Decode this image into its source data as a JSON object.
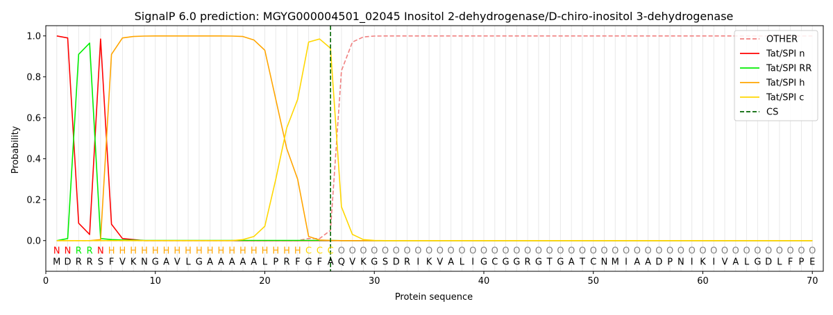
{
  "chart_data": {
    "type": "line",
    "title": "SignalP 6.0 prediction: MGYG000004501_02045 Inositol 2-dehydrogenase/D-chiro-inositol 3-dehydrogenase",
    "xlabel": "Protein sequence",
    "ylabel": "Probability",
    "xlim": [
      0,
      71
    ],
    "ylim": [
      -0.15,
      1.05
    ],
    "x_ticks": [
      0,
      10,
      20,
      30,
      40,
      50,
      60,
      70
    ],
    "y_ticks": [
      0.0,
      0.2,
      0.4,
      0.6,
      0.8,
      1.0
    ],
    "x_tick_labels": [
      "0",
      "10",
      "20",
      "30",
      "40",
      "50",
      "60",
      "70"
    ],
    "y_tick_labels": [
      "0.0",
      "0.2",
      "0.4",
      "0.6",
      "0.8",
      "1.0"
    ],
    "grid": "vertical lines at each sequence position",
    "legend_position": "top-right",
    "sequence": [
      "M",
      "D",
      "R",
      "R",
      "S",
      "F",
      "V",
      "K",
      "N",
      "G",
      "A",
      "V",
      "L",
      "G",
      "A",
      "A",
      "A",
      "A",
      "A",
      "L",
      "P",
      "R",
      "F",
      "G",
      "F",
      "A",
      "Q",
      "V",
      "K",
      "G",
      "S",
      "D",
      "R",
      "I",
      "K",
      "V",
      "A",
      "L",
      "I",
      "G",
      "C",
      "G",
      "G",
      "R",
      "G",
      "T",
      "G",
      "A",
      "T",
      "C",
      "N",
      "M",
      "I",
      "A",
      "A",
      "D",
      "P",
      "N",
      "I",
      "K",
      "I",
      "V",
      "A",
      "L",
      "G",
      "D",
      "L",
      "F",
      "P",
      "E"
    ],
    "region_labels": [
      "N",
      "N",
      "R",
      "R",
      "N",
      "H",
      "H",
      "H",
      "H",
      "H",
      "H",
      "H",
      "H",
      "H",
      "H",
      "H",
      "H",
      "H",
      "H",
      "H",
      "H",
      "H",
      "H",
      "C",
      "C",
      "C",
      "O",
      "O",
      "O",
      "O",
      "O",
      "O",
      "O",
      "O",
      "O",
      "O",
      "O",
      "O",
      "O",
      "O",
      "O",
      "O",
      "O",
      "O",
      "O",
      "O",
      "O",
      "O",
      "O",
      "O",
      "O",
      "O",
      "O",
      "O",
      "O",
      "O",
      "O",
      "O",
      "O",
      "O",
      "O",
      "O",
      "O",
      "O",
      "O",
      "O",
      "O",
      "O",
      "O",
      "O"
    ],
    "region_colors": {
      "N": "#ff0000",
      "R": "#00ee00",
      "H": "#ffa500",
      "C": "#ffd700",
      "O": "#808080"
    },
    "cleavage_site": 26,
    "series": [
      {
        "name": "OTHER",
        "color": "#f08080",
        "dash": true,
        "values": [
          0,
          0,
          0,
          0,
          0,
          0,
          0,
          0,
          0,
          0,
          0,
          0,
          0,
          0,
          0,
          0,
          0,
          0,
          0,
          0,
          0,
          0,
          0,
          0.01,
          0.01,
          0.05,
          0.83,
          0.97,
          0.995,
          0.999,
          1,
          1,
          1,
          1,
          1,
          1,
          1,
          1,
          1,
          1,
          1,
          1,
          1,
          1,
          1,
          1,
          1,
          1,
          1,
          1,
          1,
          1,
          1,
          1,
          1,
          1,
          1,
          1,
          1,
          1,
          1,
          1,
          1,
          1,
          1,
          1,
          1,
          1,
          1,
          1
        ]
      },
      {
        "name": "Tat/SPI n",
        "color": "#ff0000",
        "dash": false,
        "values": [
          1.0,
          0.99,
          0.085,
          0.03,
          0.985,
          0.08,
          0.01,
          0.005,
          0,
          0,
          0,
          0,
          0,
          0,
          0,
          0,
          0,
          0,
          0,
          0,
          0,
          0,
          0,
          0,
          0,
          0,
          0,
          0,
          0,
          0,
          0,
          0,
          0,
          0,
          0,
          0,
          0,
          0,
          0,
          0,
          0,
          0,
          0,
          0,
          0,
          0,
          0,
          0,
          0,
          0,
          0,
          0,
          0,
          0,
          0,
          0,
          0,
          0,
          0,
          0,
          0,
          0,
          0,
          0,
          0,
          0,
          0,
          0,
          0,
          0
        ]
      },
      {
        "name": "Tat/SPI RR",
        "color": "#00ee00",
        "dash": false,
        "values": [
          0,
          0.01,
          0.91,
          0.965,
          0.01,
          0.005,
          0.003,
          0.002,
          0.001,
          0.001,
          0.001,
          0.001,
          0.001,
          0.001,
          0.001,
          0.001,
          0.001,
          0.001,
          0.001,
          0.001,
          0.001,
          0.001,
          0.001,
          0.001,
          0.001,
          0.001,
          0,
          0,
          0,
          0,
          0,
          0,
          0,
          0,
          0,
          0,
          0,
          0,
          0,
          0,
          0,
          0,
          0,
          0,
          0,
          0,
          0,
          0,
          0,
          0,
          0,
          0,
          0,
          0,
          0,
          0,
          0,
          0,
          0,
          0,
          0,
          0,
          0,
          0,
          0,
          0,
          0,
          0,
          0,
          0
        ]
      },
      {
        "name": "Tat/SPI h",
        "color": "#ffa500",
        "dash": false,
        "values": [
          0,
          0,
          0,
          0,
          0.005,
          0.91,
          0.99,
          0.997,
          0.999,
          1,
          1,
          1,
          1,
          1,
          1,
          1,
          0.999,
          0.997,
          0.98,
          0.93,
          0.69,
          0.45,
          0.3,
          0.02,
          0.003,
          0.001,
          0,
          0,
          0,
          0,
          0,
          0,
          0,
          0,
          0,
          0,
          0,
          0,
          0,
          0,
          0,
          0,
          0,
          0,
          0,
          0,
          0,
          0,
          0,
          0,
          0,
          0,
          0,
          0,
          0,
          0,
          0,
          0,
          0,
          0,
          0,
          0,
          0,
          0,
          0,
          0,
          0,
          0,
          0,
          0
        ]
      },
      {
        "name": "Tat/SPI c",
        "color": "#ffd700",
        "dash": false,
        "values": [
          0,
          0,
          0,
          0,
          0,
          0,
          0,
          0,
          0,
          0,
          0,
          0,
          0,
          0,
          0,
          0,
          0,
          0.005,
          0.02,
          0.07,
          0.3,
          0.55,
          0.69,
          0.97,
          0.985,
          0.94,
          0.165,
          0.03,
          0.005,
          0.001,
          0,
          0,
          0,
          0,
          0,
          0,
          0,
          0,
          0,
          0,
          0,
          0,
          0,
          0,
          0,
          0,
          0,
          0,
          0,
          0,
          0,
          0,
          0,
          0,
          0,
          0,
          0,
          0,
          0,
          0,
          0,
          0,
          0,
          0,
          0,
          0,
          0,
          0,
          0,
          0
        ]
      }
    ],
    "cs_legend": {
      "name": "CS",
      "color": "#006400"
    }
  }
}
